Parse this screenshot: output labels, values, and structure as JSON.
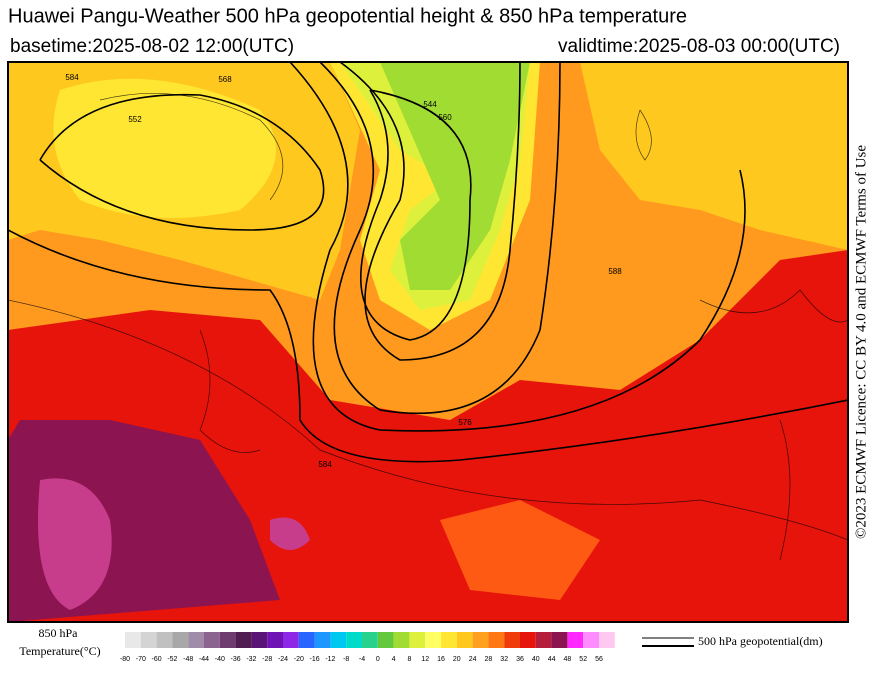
{
  "header": {
    "title": "Huawei Pangu-Weather 500 hPa geopotential height & 850 hPa temperature",
    "basetime": "basetime:2025-08-02 12:00(UTC)",
    "validtime": "validtime:2025-08-03 00:00(UTC)"
  },
  "licence": "©2023 ECMWF Licence: CC BY 4.0 and ECMWF Terms of Use",
  "map": {
    "contour_labels": [
      "584",
      "568",
      "552",
      "544",
      "588",
      "576",
      "584",
      "560"
    ]
  },
  "legend": {
    "temperature_title": "850 hPa",
    "temperature_unit": "Temperature(°C)",
    "ticks": [
      -80,
      -70,
      -60,
      -52,
      -48,
      -44,
      -40,
      -36,
      -32,
      -28,
      -24,
      -20,
      -16,
      -12,
      -8,
      -4,
      0,
      4,
      8,
      12,
      16,
      20,
      24,
      28,
      32,
      36,
      40,
      44,
      48,
      52,
      56
    ],
    "colors": [
      "#e8e8e8",
      "#d4d4d4",
      "#c0c0c0",
      "#a8a8a8",
      "#a08ca8",
      "#8c6490",
      "#6e3c6e",
      "#501e50",
      "#5a1478",
      "#6e14b4",
      "#8c28e6",
      "#2864ff",
      "#1e96ff",
      "#00c8f0",
      "#00dcc8",
      "#28d28c",
      "#64c83c",
      "#a0dc32",
      "#dcf03c",
      "#ffff64",
      "#ffe632",
      "#ffc81e",
      "#ffa01e",
      "#ff7814",
      "#f03c0a",
      "#e6140a",
      "#b41e3c",
      "#8c1450",
      "#ff28ff",
      "#ff8cff",
      "#ffc8f0"
    ],
    "line_label": "500 hPa geopotential(dm)"
  }
}
